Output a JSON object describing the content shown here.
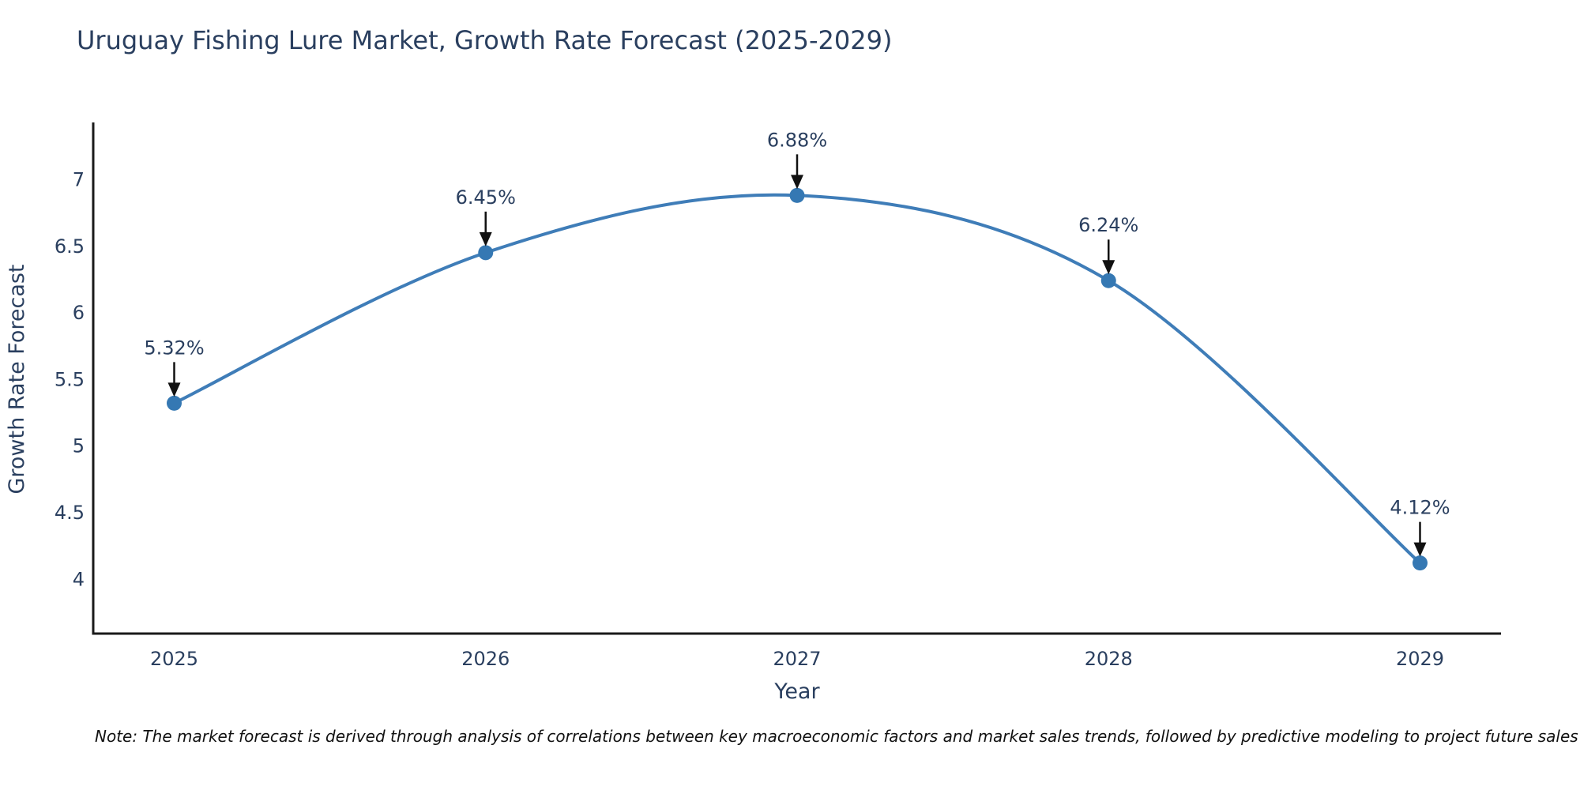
{
  "title": "Uruguay Fishing Lure Market, Growth Rate Forecast (2025-2029)",
  "note": "Note: The market forecast is derived through analysis of correlations between key macroeconomic factors and market sales trends, followed by predictive modeling to project future sales",
  "chart_data": {
    "type": "line",
    "title": "Uruguay Fishing Lure Market, Growth Rate Forecast (2025-2029)",
    "xlabel": "Year",
    "ylabel": "Growth Rate Forecast",
    "x": [
      2025,
      2026,
      2027,
      2028,
      2029
    ],
    "y": [
      5.32,
      6.45,
      6.88,
      6.24,
      4.12
    ],
    "point_labels": [
      "5.32%",
      "6.45%",
      "6.88%",
      "6.24%",
      "4.12%"
    ],
    "x_tick_labels": [
      "2025",
      "2026",
      "2027",
      "2028",
      "2029"
    ],
    "y_ticks": [
      4,
      4.5,
      5,
      5.5,
      6,
      6.5,
      7
    ],
    "y_tick_labels": [
      "4",
      "4.5",
      "5",
      "5.5",
      "6",
      "6.5",
      "7"
    ],
    "x_range": [
      2024.74,
      2029.26
    ],
    "y_range": [
      3.59,
      7.41
    ],
    "line_shape": "spline",
    "grid": false,
    "legend": false,
    "colors": {
      "line": "#3f7db8",
      "marker": "#3578b3",
      "text": "#2a3f5f",
      "axis": "#1a1a1a",
      "arrow": "#111111"
    }
  }
}
